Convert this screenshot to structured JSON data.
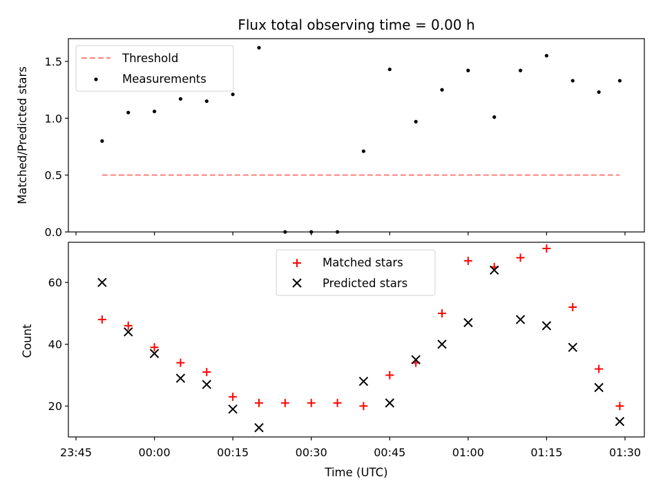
{
  "chart_data": [
    {
      "type": "scatter",
      "title": "Flux total observing time = 0.00 h",
      "xlabel": "",
      "ylabel": "Matched/Predicted stars",
      "x_range_minutes_from_first_tick": [
        -3,
        108
      ],
      "ylim": [
        0,
        1.7
      ],
      "yticks": [
        0.0,
        0.5,
        1.0,
        1.5
      ],
      "ytick_labels": [
        "0.0",
        "0.5",
        "1.0",
        "1.5"
      ],
      "grid": false,
      "legend_position": "upper-left",
      "threshold": {
        "name": "Threshold",
        "value": 0.5,
        "color": "#ff7f7f",
        "style": "dashed",
        "x_start": "23:50",
        "x_end": "01:29"
      },
      "series": [
        {
          "name": "Measurements",
          "color": "#000000",
          "marker": "dot",
          "x": [
            "23:50",
            "23:55",
            "00:00",
            "00:05",
            "00:10",
            "00:15",
            "00:20",
            "00:25",
            "00:30",
            "00:35",
            "00:40",
            "00:45",
            "00:50",
            "00:55",
            "01:00",
            "01:05",
            "01:10",
            "01:15",
            "01:20",
            "01:25",
            "01:29"
          ],
          "y": [
            0.8,
            1.05,
            1.06,
            1.17,
            1.15,
            1.21,
            1.62,
            0.0,
            0.0,
            0.0,
            0.71,
            1.43,
            0.97,
            1.25,
            1.42,
            1.01,
            1.42,
            1.55,
            1.33,
            1.23,
            1.33
          ]
        }
      ]
    },
    {
      "type": "scatter",
      "title": "",
      "xlabel": "Time (UTC)",
      "ylabel": "Count",
      "ylim": [
        10,
        73
      ],
      "yticks": [
        20,
        40,
        60
      ],
      "ytick_labels": [
        "20",
        "40",
        "60"
      ],
      "xticks": [
        "23:45",
        "00:00",
        "00:15",
        "00:30",
        "00:45",
        "01:00",
        "01:15",
        "01:30"
      ],
      "grid": false,
      "legend_position": "upper-center",
      "series": [
        {
          "name": "Matched stars",
          "color": "#ff0000",
          "marker": "plus",
          "x": [
            "23:50",
            "23:55",
            "00:00",
            "00:05",
            "00:10",
            "00:15",
            "00:20",
            "00:25",
            "00:30",
            "00:35",
            "00:40",
            "00:45",
            "00:50",
            "00:55",
            "01:00",
            "01:05",
            "01:10",
            "01:15",
            "01:20",
            "01:25",
            "01:29"
          ],
          "y": [
            48,
            46,
            39,
            34,
            31,
            23,
            21,
            21,
            21,
            21,
            20,
            30,
            34,
            50,
            67,
            65,
            68,
            71,
            52,
            32,
            20
          ]
        },
        {
          "name": "Predicted stars",
          "color": "#000000",
          "marker": "x",
          "x": [
            "23:50",
            "23:55",
            "00:00",
            "00:05",
            "00:10",
            "00:15",
            "00:20",
            "00:40",
            "00:45",
            "00:50",
            "00:55",
            "01:00",
            "01:05",
            "01:10",
            "01:15",
            "01:20",
            "01:25",
            "01:29"
          ],
          "y": [
            60,
            44,
            37,
            29,
            27,
            19,
            13,
            28,
            21,
            35,
            40,
            47,
            64,
            48,
            46,
            39,
            26,
            15
          ]
        }
      ]
    }
  ]
}
